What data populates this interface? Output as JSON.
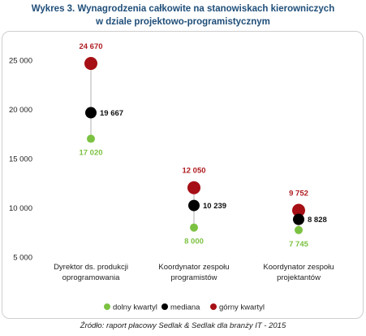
{
  "title": {
    "line1": "Wykres 3. Wynagrodzenia całkowite na stanowiskach kierowniczych",
    "line2": "w dziale projektowo-programistycznym"
  },
  "source": "Źródło: raport płacowy Sedlak & Sedlak dla branży IT - 2015",
  "colors": {
    "q1": "#7cc242",
    "median": "#000000",
    "q3": "#a50f15",
    "whisker": "#b0b0b0",
    "q3_label": "#b01c20",
    "q1_label": "#7cc242",
    "median_label": "#111111"
  },
  "chart_data": {
    "type": "scatter",
    "categories": [
      [
        "Dyrektor ds. produkcji",
        "oprogramowania"
      ],
      [
        "Koordynator zespołu",
        "programistów"
      ],
      [
        "Koordynator zespołu",
        "projektantów"
      ]
    ],
    "ylim": [
      5000,
      25000
    ],
    "yticks": [
      5000,
      10000,
      15000,
      20000,
      25000
    ],
    "ytick_labels": [
      "5 000",
      "10 000",
      "15 000",
      "20 000",
      "25 000"
    ],
    "series": [
      {
        "name": "dolny kwartyl",
        "values": [
          17020,
          8000,
          7745
        ],
        "labels": [
          "17 020",
          "8 000",
          "7 745"
        ]
      },
      {
        "name": "mediana",
        "values": [
          19667,
          10239,
          8828
        ],
        "labels": [
          "19 667",
          "10 239",
          "8 828"
        ]
      },
      {
        "name": "górny kwartyl",
        "values": [
          24670,
          12050,
          9752
        ],
        "labels": [
          "24 670",
          "12 050",
          "9 752"
        ]
      }
    ],
    "legend_position": "bottom"
  }
}
